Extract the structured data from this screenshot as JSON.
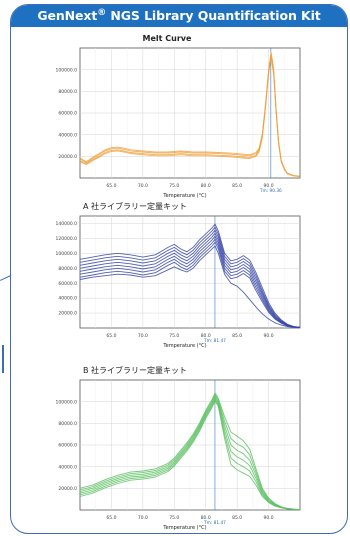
{
  "banner": {
    "brand": "GenNext",
    "reg": "®",
    "rest": " NGS Library Quantification Kit"
  },
  "chart_data": [
    {
      "type": "line",
      "title": "Melt Curve",
      "subtitle": "",
      "xlabel": "Temperature (°C)",
      "ylabel": "",
      "xlim": [
        60,
        95
      ],
      "ylim": [
        0,
        120000
      ],
      "x_ticks": [
        "65.0",
        "70.0",
        "75.0",
        "80.0",
        "85.0",
        "90.0"
      ],
      "y_ticks": [
        "20000.0",
        "40000.0",
        "60000.0",
        "80000.0",
        "100000.0"
      ],
      "peak_label": "Tm: 90.36",
      "peak_x": 90.36,
      "color": "#f0a13e",
      "grid": true,
      "x": [
        60,
        61,
        62,
        63,
        64,
        65,
        66,
        67,
        68,
        70,
        72,
        74,
        76,
        78,
        80,
        82,
        84,
        85,
        86,
        87,
        88,
        88.5,
        89,
        89.5,
        90,
        90.4,
        90.8,
        91.2,
        91.6,
        92,
        92.5,
        93,
        94,
        95
      ],
      "series": [
        {
          "values": [
            16000,
            13000,
            17000,
            20000,
            23500,
            25500,
            26000,
            25000,
            23500,
            22500,
            21500,
            21500,
            22500,
            21500,
            21500,
            21000,
            20500,
            20000,
            19500,
            19000,
            21000,
            25000,
            38000,
            65000,
            98000,
            113000,
            98000,
            62000,
            32000,
            16000,
            8000,
            4000,
            2000,
            1500
          ]
        },
        {
          "values": [
            17500,
            14000,
            18000,
            21500,
            25000,
            27000,
            27500,
            26500,
            25000,
            24000,
            23000,
            23000,
            24000,
            23000,
            23000,
            22500,
            22000,
            21500,
            21000,
            20500,
            22500,
            26500,
            39500,
            66000,
            99000,
            115000,
            100000,
            63000,
            33000,
            16500,
            8500,
            4200,
            2100,
            1600
          ]
        },
        {
          "values": [
            15000,
            12500,
            16000,
            19000,
            22500,
            24500,
            25000,
            24000,
            22500,
            21500,
            20500,
            20500,
            21500,
            20500,
            20500,
            20000,
            19500,
            19000,
            18500,
            18000,
            20000,
            24000,
            37000,
            64000,
            96000,
            111000,
            96000,
            61000,
            31000,
            15500,
            7800,
            3900,
            1900,
            1400
          ]
        },
        {
          "values": [
            18500,
            15000,
            19000,
            22500,
            26000,
            28000,
            28500,
            27500,
            26000,
            25000,
            24000,
            24000,
            25000,
            24000,
            24000,
            23500,
            23000,
            22500,
            22000,
            21500,
            23500,
            27500,
            40500,
            67000,
            100000,
            116000,
            101000,
            64000,
            34000,
            17000,
            8800,
            4300,
            2200,
            1700
          ]
        }
      ]
    },
    {
      "type": "line",
      "title": "A 社ライブラリー定量キット",
      "subtitle": "",
      "xlabel": "Temperature (°C)",
      "ylabel": "",
      "xlim": [
        60,
        95
      ],
      "ylim": [
        0,
        150000
      ],
      "x_ticks": [
        "65.0",
        "70.0",
        "75.0",
        "80.0",
        "85.0",
        "90.0"
      ],
      "y_ticks": [
        "20000.0",
        "40000.0",
        "60000.0",
        "80000.0",
        "100000.0",
        "120000.0",
        "140000.0"
      ],
      "peak_label": "Tm: 81.47",
      "peak_x": 81.47,
      "color": "#3747a8",
      "grid": true,
      "x": [
        60,
        62,
        64,
        66,
        68,
        70,
        72,
        74,
        75,
        76,
        77,
        78,
        79,
        80,
        81,
        81.5,
        82,
        83,
        84,
        85,
        86,
        87,
        88,
        89,
        90,
        91,
        92,
        93,
        94,
        95
      ],
      "series": [
        {
          "values": [
            92000,
            95000,
            98000,
            100000,
            98000,
            95000,
            98000,
            108000,
            112000,
            106000,
            102000,
            108000,
            118000,
            126000,
            134000,
            139000,
            130000,
            100000,
            90000,
            92000,
            97000,
            91000,
            74000,
            54000,
            34000,
            20000,
            11000,
            5000,
            2000,
            1000
          ]
        },
        {
          "values": [
            88000,
            91000,
            94000,
            96000,
            94000,
            91000,
            94000,
            104000,
            108000,
            102000,
            98000,
            104000,
            114000,
            122000,
            130000,
            135000,
            126000,
            96000,
            86000,
            88000,
            93000,
            87000,
            70000,
            50000,
            31000,
            18000,
            10000,
            4500,
            1800,
            900
          ]
        },
        {
          "values": [
            84000,
            87000,
            90000,
            92000,
            90000,
            87000,
            90000,
            100000,
            104000,
            98000,
            94000,
            100000,
            110000,
            118000,
            126000,
            131000,
            122000,
            92000,
            82000,
            84000,
            89000,
            83000,
            66000,
            47000,
            29000,
            16500,
            9000,
            4000,
            1600,
            800
          ]
        },
        {
          "values": [
            80000,
            83000,
            86000,
            88000,
            86000,
            83000,
            86000,
            96000,
            100000,
            94000,
            90000,
            96000,
            106000,
            114000,
            122000,
            127000,
            118000,
            88000,
            78000,
            80000,
            85000,
            79000,
            62000,
            44000,
            27000,
            15000,
            8200,
            3600,
            1400,
            700
          ]
        },
        {
          "values": [
            76000,
            79000,
            82000,
            84000,
            82000,
            79000,
            82000,
            92000,
            96000,
            90000,
            86000,
            92000,
            102000,
            110000,
            118000,
            123000,
            114000,
            84000,
            74000,
            76000,
            81000,
            75000,
            58000,
            41000,
            25000,
            14000,
            7500,
            3300,
            1300,
            600
          ]
        },
        {
          "values": [
            72000,
            75000,
            78000,
            80000,
            78000,
            75000,
            78000,
            88000,
            92000,
            86000,
            82000,
            88000,
            98000,
            106000,
            114000,
            119000,
            110000,
            80000,
            70000,
            72000,
            77000,
            71000,
            54000,
            38000,
            23000,
            13000,
            7000,
            3000,
            1200,
            500
          ]
        },
        {
          "values": [
            68000,
            71000,
            74000,
            76000,
            74000,
            71000,
            74000,
            84000,
            88000,
            82000,
            78000,
            84000,
            94000,
            102000,
            110000,
            115000,
            106000,
            76000,
            66000,
            68000,
            73000,
            67000,
            50000,
            35000,
            21000,
            12000,
            6500,
            2800,
            1100,
            500
          ]
        },
        {
          "values": [
            65000,
            68000,
            70000,
            72000,
            71000,
            68000,
            70000,
            78000,
            82000,
            78000,
            75000,
            80000,
            90000,
            98000,
            106000,
            110000,
            100000,
            72000,
            60000,
            56000,
            48000,
            38000,
            28000,
            19000,
            12000,
            7000,
            4000,
            2000,
            900,
            400
          ]
        }
      ]
    },
    {
      "type": "line",
      "title": "B 社ライブラリー定量キット",
      "subtitle": "",
      "xlabel": "Temperature (°C)",
      "ylabel": "",
      "xlim": [
        60,
        95
      ],
      "ylim": [
        0,
        120000
      ],
      "x_ticks": [
        "65.0",
        "70.0",
        "75.0",
        "80.0",
        "85.0",
        "90.0"
      ],
      "y_ticks": [
        "20000.0",
        "40000.0",
        "60000.0",
        "80000.0",
        "100000.0"
      ],
      "peak_label": "Tm: 81.47",
      "peak_x": 81.47,
      "color": "#5cbf62",
      "grid": true,
      "x": [
        60,
        62,
        64,
        66,
        68,
        70,
        72,
        74,
        75,
        76,
        77,
        78,
        79,
        80,
        81,
        81.5,
        82,
        83,
        84,
        85,
        86,
        87,
        88,
        89,
        90,
        91,
        92,
        93,
        94,
        95
      ],
      "series": [
        {
          "values": [
            20000,
            23000,
            28000,
            32000,
            35000,
            36000,
            38000,
            43000,
            48000,
            55000,
            62000,
            70000,
            80000,
            92000,
            102000,
            108000,
            103000,
            86000,
            72000,
            68000,
            64000,
            56000,
            38000,
            20000,
            11000,
            6000,
            3000,
            1500,
            800,
            400
          ]
        },
        {
          "values": [
            18500,
            21500,
            26500,
            30500,
            33500,
            34500,
            36500,
            41500,
            46500,
            53500,
            60500,
            68500,
            78500,
            90500,
            100500,
            106500,
            101500,
            82000,
            66000,
            61000,
            58000,
            51000,
            35000,
            18500,
            10000,
            5500,
            2800,
            1400,
            700,
            350
          ]
        },
        {
          "values": [
            17000,
            20000,
            25000,
            29000,
            32000,
            33000,
            35000,
            40000,
            45000,
            52000,
            59000,
            67000,
            77000,
            89000,
            99000,
            105000,
            100000,
            78000,
            60000,
            55000,
            52000,
            46000,
            32000,
            17000,
            9000,
            5000,
            2600,
            1300,
            650,
            300
          ]
        },
        {
          "values": [
            15500,
            18500,
            23500,
            27500,
            30500,
            31500,
            33500,
            38500,
            43500,
            50500,
            57500,
            65500,
            75500,
            87500,
            97500,
            103500,
            98500,
            74000,
            54000,
            49000,
            46000,
            41000,
            29000,
            15500,
            8200,
            4500,
            2400,
            1200,
            600,
            280
          ]
        },
        {
          "values": [
            14000,
            17000,
            22000,
            26000,
            29000,
            30000,
            32000,
            37000,
            42000,
            49000,
            56000,
            64000,
            74000,
            86000,
            96000,
            102000,
            97000,
            70000,
            48000,
            43000,
            40000,
            36000,
            26000,
            14000,
            7500,
            4000,
            2200,
            1100,
            550,
            250
          ]
        },
        {
          "values": [
            12500,
            15500,
            20500,
            24500,
            27500,
            28500,
            30500,
            35500,
            40500,
            47500,
            54500,
            62500,
            72500,
            84500,
            94500,
            100500,
            95500,
            66000,
            42000,
            37000,
            34000,
            31000,
            23000,
            12500,
            6800,
            3600,
            2000,
            1000,
            500,
            230
          ]
        }
      ]
    }
  ]
}
